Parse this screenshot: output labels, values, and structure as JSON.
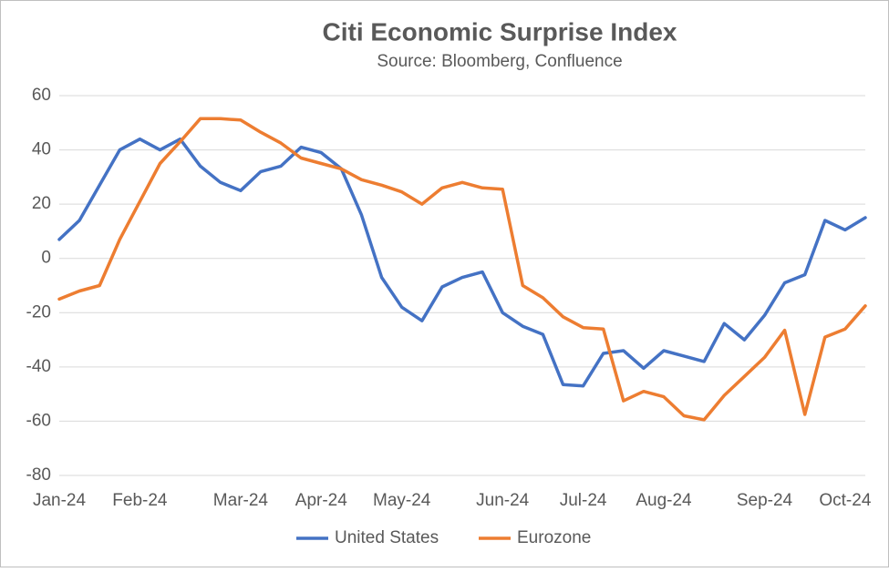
{
  "chart_data": {
    "type": "line",
    "title": "Citi Economic Surprise Index",
    "subtitle": "Source: Bloomberg, Confluence",
    "categories": [
      "Jan-24",
      null,
      null,
      null,
      "Feb-24",
      null,
      null,
      null,
      null,
      "Mar-24",
      null,
      null,
      null,
      "Apr-24",
      null,
      null,
      null,
      "May-24",
      null,
      null,
      null,
      null,
      "Jun-24",
      null,
      null,
      null,
      "Jul-24",
      null,
      null,
      null,
      "Aug-24",
      null,
      null,
      null,
      null,
      "Sep-24",
      null,
      null,
      null,
      "Oct-24",
      null
    ],
    "series": [
      {
        "name": "United States",
        "color": "#4472c4",
        "values": [
          7,
          14,
          27,
          40,
          44,
          40,
          44,
          34,
          28,
          25,
          32,
          34,
          41,
          39,
          33,
          16,
          -7,
          -18,
          -23,
          -10.5,
          -7,
          -5,
          -20,
          -25,
          -28,
          -46.5,
          -47,
          -35,
          -34,
          -40.5,
          -34,
          -36,
          -38,
          -24,
          -30,
          -21,
          -9,
          -6,
          14,
          10.5,
          15
        ]
      },
      {
        "name": "Eurozone",
        "color": "#ed7d31",
        "values": [
          -15,
          -12,
          -10,
          7,
          21,
          35,
          43,
          51.5,
          51.5,
          51,
          46.5,
          42.5,
          37,
          35,
          33,
          29,
          27,
          24.5,
          20,
          26,
          28,
          26,
          25.5,
          -10,
          -14.5,
          -21.5,
          -25.5,
          -26,
          -52.5,
          -49,
          -51,
          -58,
          -59.5,
          -50.5,
          -43.5,
          -36.5,
          -26.5,
          -57.5,
          -29,
          -26,
          -17.5
        ]
      }
    ],
    "ylim": [
      -80,
      60
    ],
    "yticks": [
      -80,
      -60,
      -40,
      -20,
      0,
      20,
      40,
      60
    ],
    "grid": true,
    "legend": "bottom"
  }
}
